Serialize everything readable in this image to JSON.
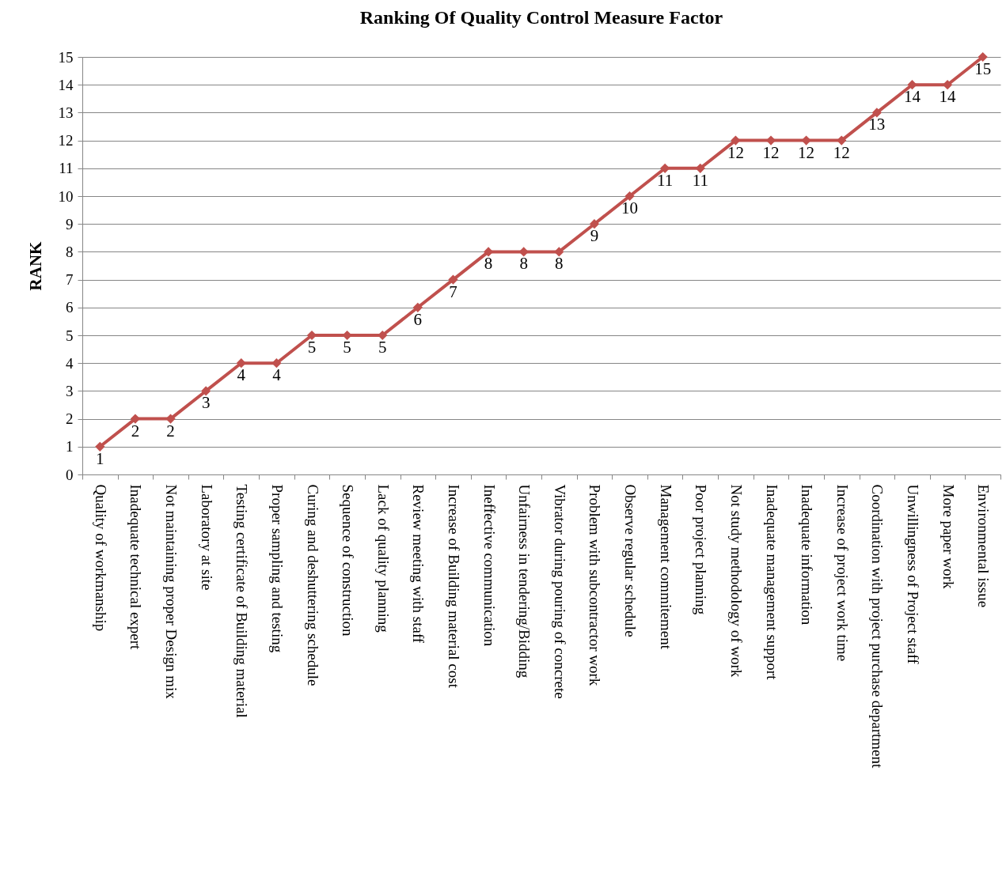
{
  "chart_data": {
    "type": "line",
    "title": "Ranking Of Quality Control Measure Factor",
    "ylabel": "RANK",
    "categories": [
      "Quality of workmanship",
      "Inadequate technical expert",
      "Not maintaining proper Design mix",
      "Laboratory at site",
      "Testing certificate of Building material",
      "Proper sampling and testing",
      "Curing and deshuttering schedule",
      "Sequence of construction",
      "Lack of quality planning",
      "Review meeting with staff",
      "Increase of Building material cost",
      "Ineffective communication",
      "Unfairness in tendering/Bidding",
      "Vibrator during pouring of concrete",
      "Problem with subcontractor work",
      "Observe regular schedule",
      "Management commitement",
      "Poor project planning",
      "Not study methodology of work",
      "Inadequate management support",
      "Inadequate information",
      "Increase of project work time",
      "Coordination with project purchase department",
      "Unwillingness of Project staff",
      "More paper work",
      "Environmental issue"
    ],
    "values": [
      1,
      2,
      2,
      3,
      4,
      4,
      5,
      5,
      5,
      6,
      7,
      8,
      8,
      8,
      9,
      10,
      11,
      11,
      12,
      12,
      12,
      12,
      13,
      14,
      14,
      15
    ],
    "color": "#c0504d",
    "ylim": [
      0,
      15
    ],
    "yticks": [
      0,
      1,
      2,
      3,
      4,
      5,
      6,
      7,
      8,
      9,
      10,
      11,
      12,
      13,
      14,
      15
    ],
    "grid": "y",
    "marker": "diamond",
    "line_style": "solid",
    "data_labels": true
  }
}
